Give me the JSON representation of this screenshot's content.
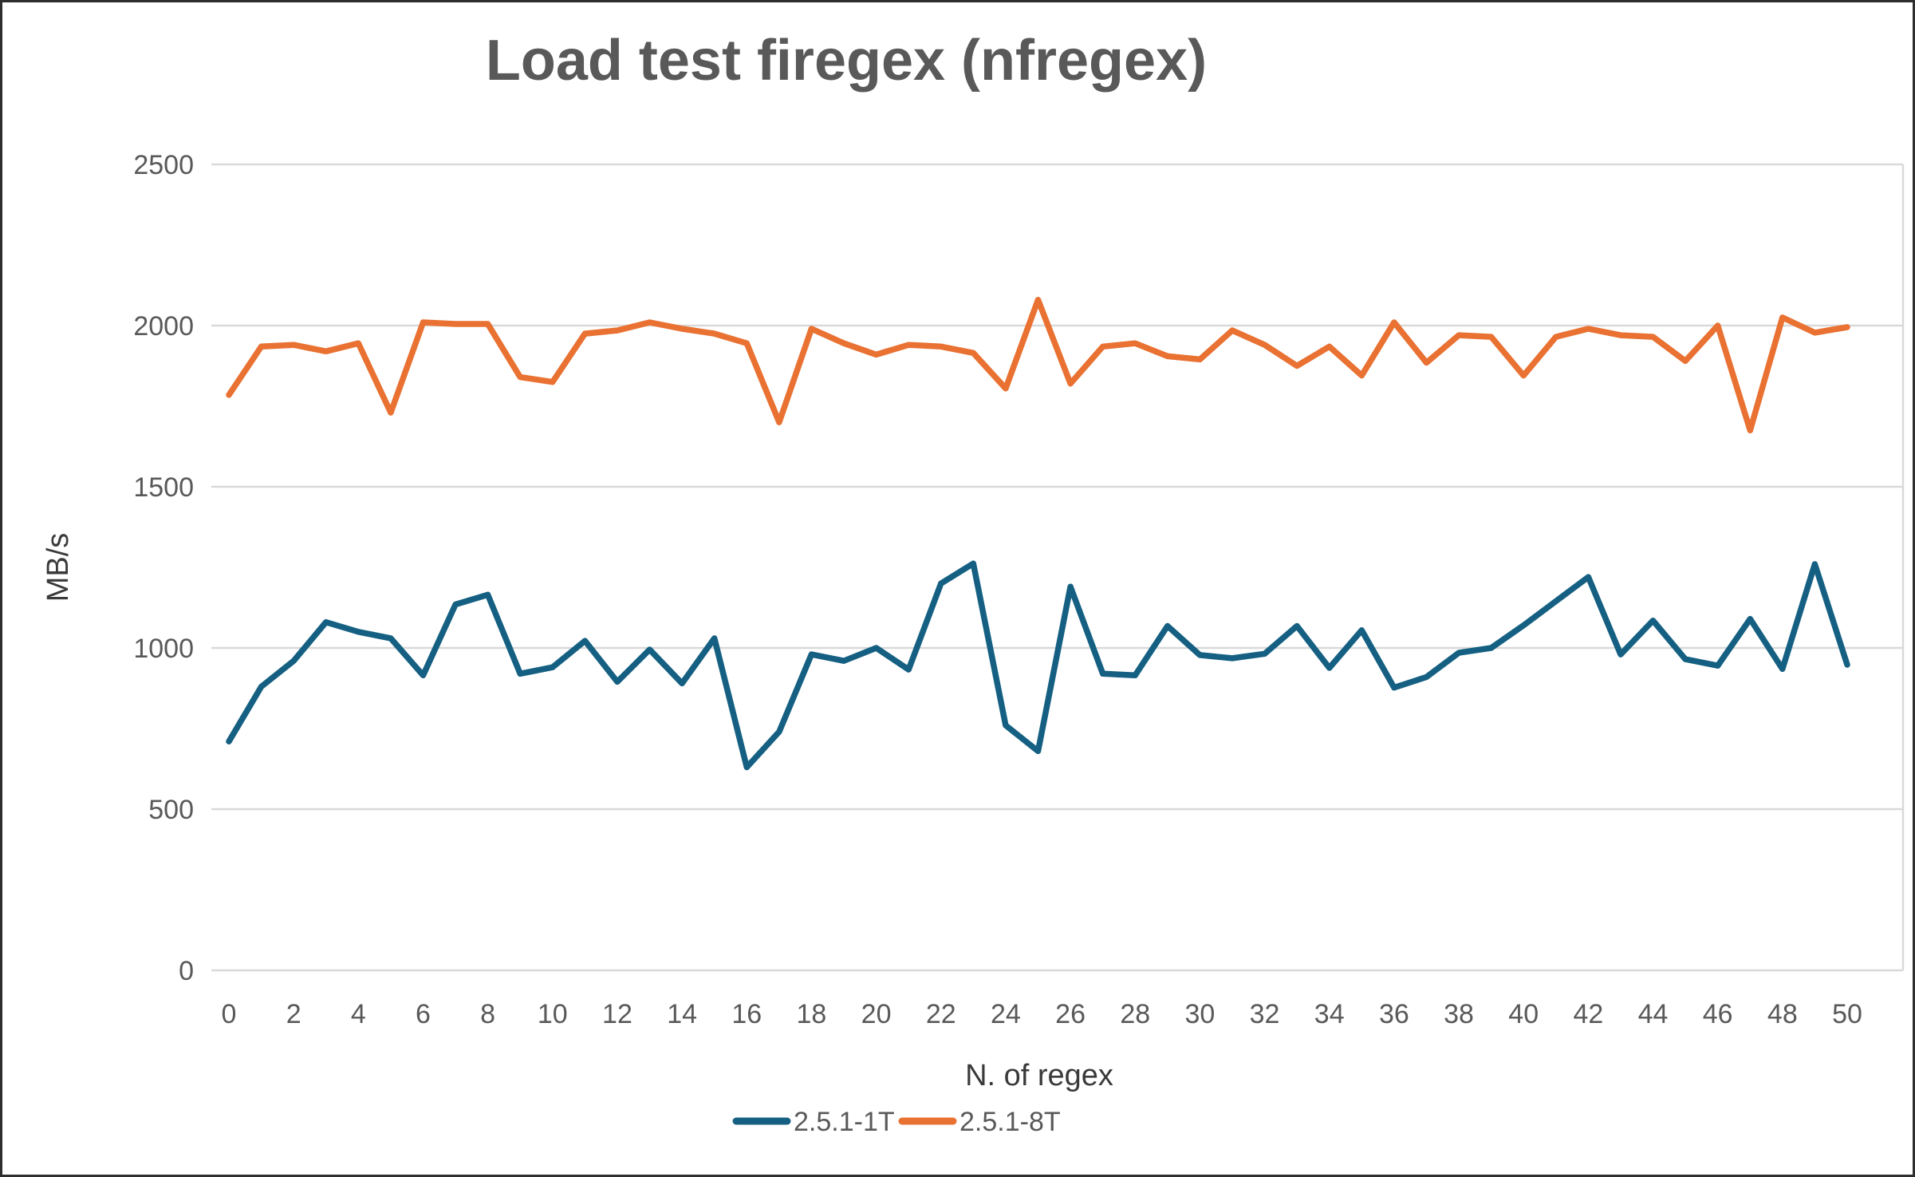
{
  "title": "Load test firegex (nfregex)",
  "axes": {
    "y_title": "MB/s",
    "x_title": "N. of regex"
  },
  "legend": {
    "entries": [
      {
        "label": "2.5.1-1T",
        "color": "#156082"
      },
      {
        "label": "2.5.1-8T",
        "color": "#E97132"
      }
    ]
  },
  "colors": {
    "series_1t": "#156082",
    "series_8t": "#E97132",
    "gridline": "#D9D9D9",
    "text_gray": "#595959",
    "axis_title_gray": "#3a3a3a"
  },
  "chart_data": {
    "type": "line",
    "title": "Load test firegex (nfregex)",
    "xlabel": "N. of regex",
    "ylabel": "MB/s",
    "xlim": [
      0,
      50
    ],
    "ylim": [
      0,
      2500
    ],
    "ytick_step": 500,
    "xtick_step": 2,
    "grid": "horizontal",
    "legend_position": "bottom",
    "x": [
      0,
      1,
      2,
      3,
      4,
      5,
      6,
      7,
      8,
      9,
      10,
      11,
      12,
      13,
      14,
      15,
      16,
      17,
      18,
      19,
      20,
      21,
      22,
      23,
      24,
      25,
      26,
      27,
      28,
      29,
      30,
      31,
      32,
      33,
      34,
      35,
      36,
      37,
      38,
      39,
      40,
      41,
      42,
      43,
      44,
      45,
      46,
      47,
      48,
      49,
      50
    ],
    "series": [
      {
        "name": "2.5.1-1T",
        "color": "#156082",
        "values": [
          710,
          880,
          960,
          1080,
          1050,
          1030,
          915,
          1135,
          1165,
          920,
          940,
          1022,
          895,
          995,
          890,
          1030,
          630,
          740,
          980,
          960,
          1000,
          933,
          1200,
          1262,
          760,
          680,
          1190,
          920,
          915,
          1068,
          978,
          968,
          982,
          1068,
          938,
          1055,
          877,
          910,
          985,
          1000,
          1070,
          1145,
          1220,
          980,
          1085,
          965,
          945,
          1090,
          935,
          1260,
          948
        ]
      },
      {
        "name": "2.5.1-8T",
        "color": "#E97132",
        "values": [
          1785,
          1935,
          1940,
          1920,
          1945,
          1730,
          2010,
          2005,
          2005,
          1840,
          1825,
          1975,
          1985,
          2010,
          1990,
          1975,
          1945,
          1700,
          1990,
          1945,
          1910,
          1940,
          1935,
          1915,
          1805,
          2080,
          1820,
          1935,
          1945,
          1905,
          1895,
          1985,
          1940,
          1875,
          1935,
          1845,
          2010,
          1885,
          1970,
          1965,
          1845,
          1965,
          1990,
          1970,
          1965,
          1890,
          2000,
          1675,
          2025,
          1978,
          1995
        ]
      }
    ]
  }
}
